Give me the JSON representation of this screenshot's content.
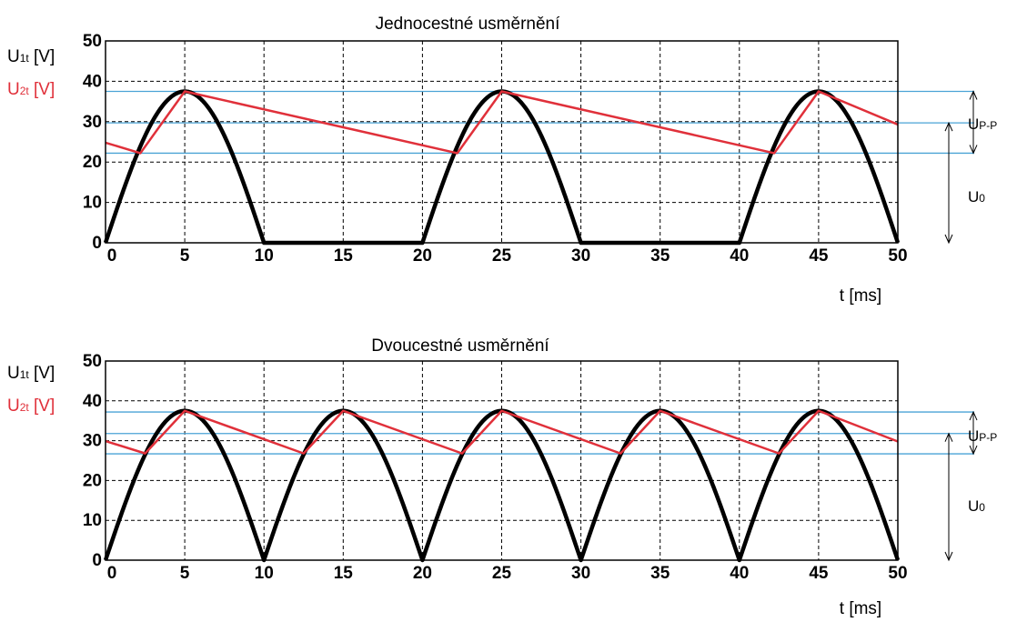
{
  "colors": {
    "u1": "#000000",
    "u2": "#e0303a",
    "level": "#4aa3d6",
    "grid": "#000000"
  },
  "chart_data": [
    {
      "type": "line",
      "title": "Jednocestné usměrnění",
      "ylabel_u1": {
        "main": "U",
        "sub": "1t",
        "unit": " [V]"
      },
      "ylabel_u2": {
        "main": "U",
        "sub": "2t",
        "unit": " [V]"
      },
      "xlabel": "t [ms]",
      "xlim": [
        0,
        50
      ],
      "ylim": [
        0,
        50
      ],
      "xticks": [
        0,
        5,
        10,
        15,
        20,
        25,
        30,
        35,
        40,
        45,
        50
      ],
      "yticks": [
        0,
        10,
        20,
        30,
        40,
        50
      ],
      "x_tick_labels": [
        "0",
        "5",
        "10",
        "15",
        "20",
        "25",
        "30",
        "35",
        "40",
        "45",
        "50"
      ],
      "y_tick_labels": [
        "0",
        "10",
        "20",
        "30",
        "40",
        "50"
      ],
      "grid": true,
      "series": [
        {
          "key": "u1",
          "kind": "half-wave rectified sine",
          "amplitude": 37.5,
          "period_ms": 20
        },
        {
          "key": "u2",
          "x": [
            0,
            2.2,
            5,
            22.2,
            25,
            42.2,
            45,
            50
          ],
          "y": [
            24.8,
            22.2,
            37.5,
            22.2,
            37.5,
            22.2,
            37.5,
            29.3
          ]
        }
      ],
      "levels": [
        37.5,
        29.7,
        22.2
      ],
      "annotations": [
        {
          "label_main": "U",
          "label_sub": "P-P",
          "from": 37.5,
          "to": 22.2
        },
        {
          "label_main": "U",
          "label_sub": "0",
          "from": 29.7,
          "to": 0
        }
      ]
    },
    {
      "type": "line",
      "title": "Dvoucestné usměrnění",
      "ylabel_u1": {
        "main": "U",
        "sub": "1t",
        "unit": " [V]"
      },
      "ylabel_u2": {
        "main": "U",
        "sub": "2t",
        "unit": " [V]"
      },
      "xlabel": "t [ms]",
      "xlim": [
        0,
        50
      ],
      "ylim": [
        0,
        50
      ],
      "xticks": [
        0,
        5,
        10,
        15,
        20,
        25,
        30,
        35,
        40,
        45,
        50
      ],
      "yticks": [
        0,
        10,
        20,
        30,
        40,
        50
      ],
      "x_tick_labels": [
        "0",
        "5",
        "10",
        "15",
        "20",
        "25",
        "30",
        "35",
        "40",
        "45",
        "50"
      ],
      "y_tick_labels": [
        "0",
        "10",
        "20",
        "30",
        "40",
        "50"
      ],
      "grid": true,
      "series": [
        {
          "key": "u1",
          "kind": "full-wave rectified sine",
          "amplitude": 37.5,
          "period_ms": 20
        },
        {
          "key": "u2",
          "x": [
            0,
            2.5,
            5,
            12.5,
            15,
            22.5,
            25,
            32.5,
            35,
            42.5,
            45,
            50
          ],
          "y": [
            29.9,
            26.8,
            37.5,
            26.8,
            37.5,
            26.8,
            37.5,
            26.8,
            37.5,
            26.8,
            37.5,
            29.8
          ]
        }
      ],
      "levels": [
        37.2,
        31.8,
        26.7
      ],
      "annotations": [
        {
          "label_main": "U",
          "label_sub": "P-P",
          "from": 37.2,
          "to": 26.7
        },
        {
          "label_main": "U",
          "label_sub": "0",
          "from": 31.8,
          "to": 0
        }
      ]
    }
  ]
}
